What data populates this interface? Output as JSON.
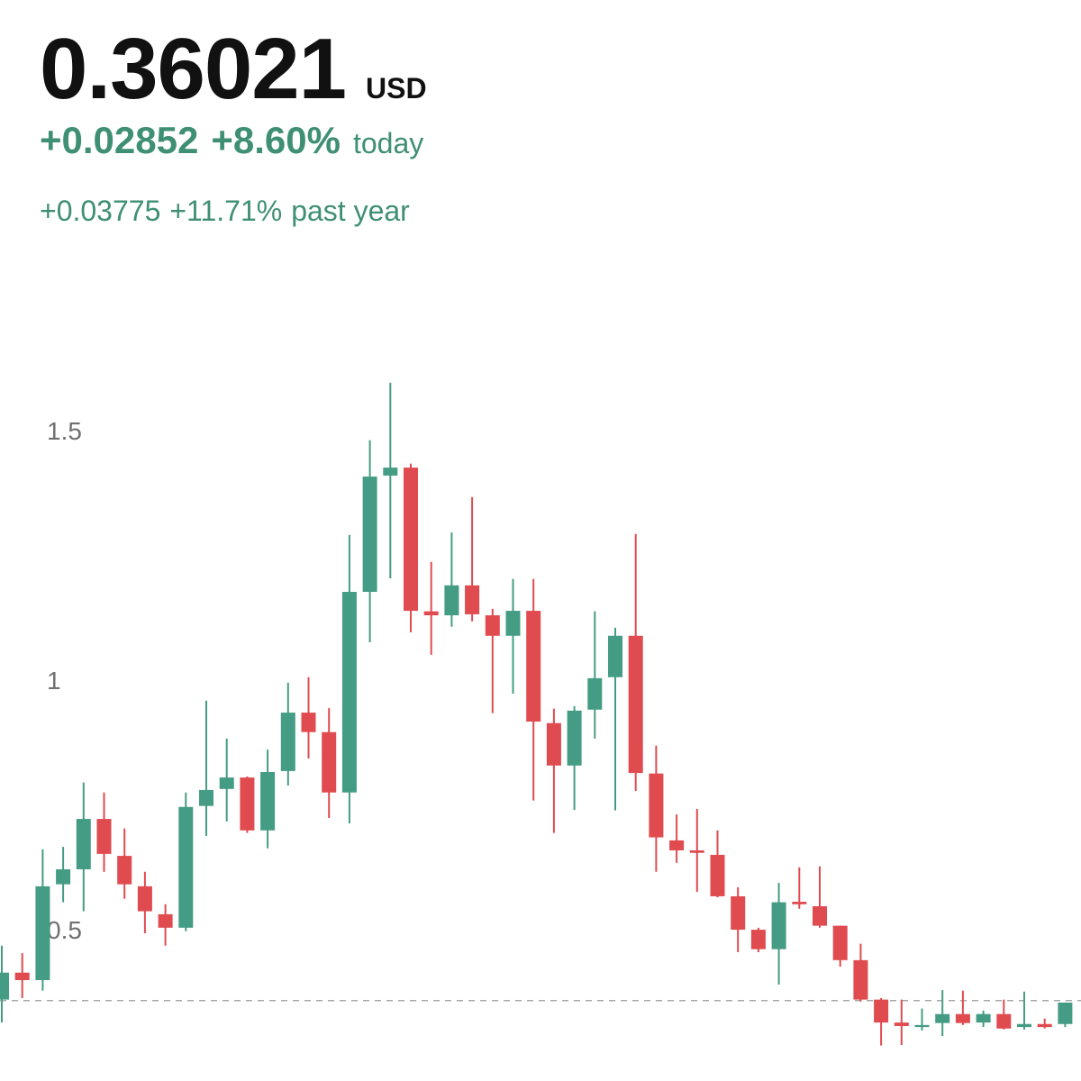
{
  "header": {
    "price": "0.36021",
    "currency": "USD",
    "today_change": "+0.02852",
    "today_percent": "+8.60%",
    "today_label": "today",
    "year_change": "+0.03775",
    "year_percent": "+11.71%",
    "year_label": "past year"
  },
  "chart_data": {
    "type": "candlestick",
    "open": [
      0.365,
      0.419,
      0.404,
      0.596,
      0.626,
      0.727,
      0.653,
      0.592,
      0.536,
      0.509,
      0.753,
      0.787,
      0.81,
      0.704,
      0.823,
      0.94,
      0.901,
      0.78,
      1.182,
      1.415,
      1.431,
      1.143,
      1.135,
      1.195,
      1.135,
      1.094,
      1.144,
      0.919,
      0.834,
      0.946,
      1.011,
      1.094,
      0.818,
      0.684,
      0.664,
      0.655,
      0.572,
      0.505,
      0.466,
      0.561,
      0.552,
      0.513,
      0.444,
      0.365,
      0.319,
      0.31,
      0.318,
      0.336,
      0.319,
      0.336,
      0.31,
      0.316,
      0.316
    ],
    "high": [
      0.473,
      0.458,
      0.666,
      0.671,
      0.8,
      0.78,
      0.708,
      0.621,
      0.556,
      0.78,
      0.964,
      0.888,
      0.812,
      0.866,
      1.0,
      1.011,
      0.949,
      1.296,
      1.486,
      1.601,
      1.439,
      1.242,
      1.301,
      1.372,
      1.148,
      1.208,
      1.208,
      0.948,
      0.953,
      1.143,
      1.11,
      1.298,
      0.874,
      0.736,
      0.747,
      0.704,
      0.59,
      0.509,
      0.599,
      0.63,
      0.632,
      0.513,
      0.477,
      0.368,
      0.365,
      0.347,
      0.384,
      0.383,
      0.343,
      0.365,
      0.381,
      0.327,
      0.359
    ],
    "low": [
      0.319,
      0.368,
      0.383,
      0.56,
      0.542,
      0.621,
      0.567,
      0.498,
      0.473,
      0.502,
      0.693,
      0.722,
      0.699,
      0.668,
      0.794,
      0.848,
      0.729,
      0.718,
      1.081,
      1.209,
      1.101,
      1.056,
      1.112,
      1.123,
      0.939,
      0.978,
      0.764,
      0.699,
      0.745,
      0.888,
      0.744,
      0.783,
      0.621,
      0.639,
      0.581,
      0.57,
      0.46,
      0.46,
      0.395,
      0.547,
      0.509,
      0.431,
      0.361,
      0.273,
      0.274,
      0.303,
      0.292,
      0.314,
      0.31,
      0.305,
      0.305,
      0.307,
      0.31
    ],
    "close": [
      0.419,
      0.404,
      0.592,
      0.626,
      0.727,
      0.657,
      0.596,
      0.542,
      0.509,
      0.751,
      0.785,
      0.81,
      0.704,
      0.821,
      0.94,
      0.901,
      0.78,
      1.182,
      1.413,
      1.431,
      1.144,
      1.135,
      1.195,
      1.137,
      1.094,
      1.144,
      0.922,
      0.834,
      0.944,
      1.009,
      1.094,
      0.819,
      0.69,
      0.664,
      0.659,
      0.572,
      0.505,
      0.466,
      0.56,
      0.556,
      0.513,
      0.444,
      0.365,
      0.319,
      0.312,
      0.314,
      0.336,
      0.318,
      0.336,
      0.307,
      0.316,
      0.31,
      0.359
    ],
    "up_color": "#459c84",
    "down_color": "#e04b50",
    "ylim": [
      0.256,
      1.664
    ],
    "yticks": [
      0.5,
      1,
      1.5
    ],
    "reference_line": 0.363
  }
}
